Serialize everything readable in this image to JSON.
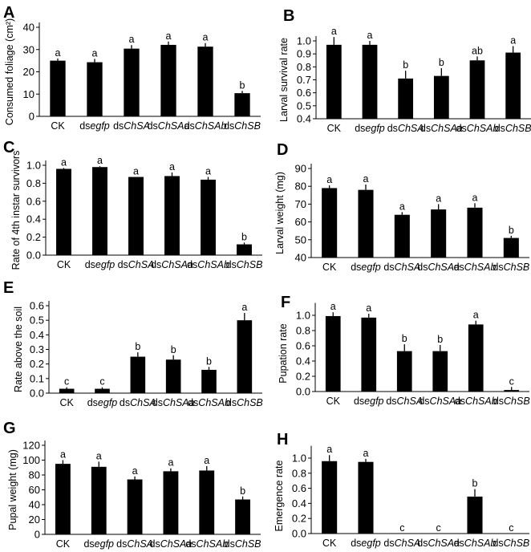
{
  "figure": {
    "categories": [
      {
        "prefix": "CK",
        "italic": ""
      },
      {
        "prefix": "ds",
        "italic": "egfp"
      },
      {
        "prefix": "ds",
        "italic": "ChSA"
      },
      {
        "prefix": "ds",
        "italic": "ChSAa"
      },
      {
        "prefix": "ds",
        "italic": "ChSAb"
      },
      {
        "prefix": "ds",
        "italic": "ChSB"
      }
    ],
    "bar_color": "#000000"
  },
  "chart_data": [
    {
      "panel": "A",
      "type": "bar",
      "title": "",
      "xlabel": "",
      "ylabel": "Consumed foliage (cm²)",
      "categories": [
        "CK",
        "dsegfp",
        "dsChSA",
        "dsChSAa",
        "dsChSAb",
        "dsChSB"
      ],
      "values": [
        25,
        24.3,
        30.4,
        32.1,
        31.3,
        10.4
      ],
      "errors": [
        1.0,
        1.5,
        1.6,
        1.5,
        1.6,
        1.0
      ],
      "significance": [
        "a",
        "a",
        "a",
        "a",
        "a",
        "b"
      ],
      "ylim": [
        0,
        40
      ],
      "yticks": [
        "0",
        "10",
        "20",
        "30",
        "40"
      ],
      "ytick_values": [
        0,
        10,
        20,
        30,
        40
      ],
      "grid": false
    },
    {
      "panel": "B",
      "type": "bar",
      "title": "",
      "xlabel": "",
      "ylabel": "Larval survival rate",
      "categories": [
        "CK",
        "dsegfp",
        "dsChSA",
        "dsChSAa",
        "dsChSAb",
        "dsChSB"
      ],
      "values": [
        0.97,
        0.97,
        0.71,
        0.73,
        0.85,
        0.91
      ],
      "errors": [
        0.06,
        0.03,
        0.06,
        0.06,
        0.03,
        0.05
      ],
      "significance": [
        "a",
        "a",
        "b",
        "b",
        "ab",
        "a"
      ],
      "ylim": [
        0.4,
        1.0
      ],
      "yticks": [
        "0.4",
        "0.5",
        "0.6",
        "0.7",
        "0.8",
        "0.9",
        "1.0"
      ],
      "ytick_values": [
        0.4,
        0.5,
        0.6,
        0.7,
        0.8,
        0.9,
        1.0
      ],
      "grid": false
    },
    {
      "panel": "C",
      "type": "bar",
      "title": "",
      "xlabel": "",
      "ylabel": "Rate of 4th instar survivors",
      "categories": [
        "CK",
        "dsegfp",
        "dsChSA",
        "dsChSAa",
        "dsChSAb",
        "dsChSB"
      ],
      "values": [
        0.96,
        0.98,
        0.87,
        0.88,
        0.84,
        0.12
      ],
      "errors": [
        0.01,
        0.01,
        0.0,
        0.04,
        0.03,
        0.02
      ],
      "significance": [
        "a",
        "a",
        "a",
        "a",
        "a",
        "b"
      ],
      "ylim": [
        0,
        1.0
      ],
      "yticks": [
        "0.0",
        "0.2",
        "0.4",
        "0.6",
        "0.8",
        "1.0"
      ],
      "ytick_values": [
        0,
        0.2,
        0.4,
        0.6,
        0.8,
        1.0
      ],
      "grid": false
    },
    {
      "panel": "D",
      "type": "bar",
      "title": "",
      "xlabel": "",
      "ylabel": "Larval  weight (mg)",
      "categories": [
        "CK",
        "dsegfp",
        "dsChSA",
        "dsChSAa",
        "dsChSAb",
        "dsChSB"
      ],
      "values": [
        79,
        78,
        64,
        67,
        68,
        51
      ],
      "errors": [
        1.5,
        3,
        1.5,
        3,
        2.5,
        1.2
      ],
      "significance": [
        "a",
        "a",
        "a",
        "a",
        "a",
        "b"
      ],
      "ylim": [
        40,
        90
      ],
      "yticks": [
        "40",
        "50",
        "60",
        "70",
        "80",
        "90"
      ],
      "ytick_values": [
        40,
        50,
        60,
        70,
        80,
        90
      ],
      "grid": false
    },
    {
      "panel": "E",
      "type": "bar",
      "title": "",
      "xlabel": "",
      "ylabel": "Rate above the soil",
      "categories": [
        "CK",
        "dsegfp",
        "dsChSA",
        "dsChSAa",
        "dsChSAb",
        "dsChSB"
      ],
      "values": [
        0.03,
        0.03,
        0.25,
        0.23,
        0.16,
        0.5
      ],
      "errors": [
        0.01,
        0.01,
        0.03,
        0.03,
        0.02,
        0.05
      ],
      "significance": [
        "c",
        "c",
        "b",
        "b",
        "b",
        "a"
      ],
      "ylim": [
        0,
        0.6
      ],
      "yticks": [
        "0.0",
        "0.1",
        "0.2",
        "0.3",
        "0.4",
        "0.5",
        "0.6"
      ],
      "ytick_values": [
        0,
        0.1,
        0.2,
        0.3,
        0.4,
        0.5,
        0.6
      ],
      "grid": false
    },
    {
      "panel": "F",
      "type": "bar",
      "title": "",
      "xlabel": "",
      "ylabel": "Pupation rate",
      "categories": [
        "CK",
        "dsegfp",
        "dsChSA",
        "dsChSAa",
        "dsChSAb",
        "dsChSB"
      ],
      "values": [
        0.99,
        0.97,
        0.53,
        0.53,
        0.88,
        0.02
      ],
      "errors": [
        0.05,
        0.05,
        0.09,
        0.08,
        0.05,
        0.04
      ],
      "significance": [
        "a",
        "a",
        "b",
        "b",
        "a",
        "c"
      ],
      "ylim": [
        0,
        1.1
      ],
      "yticks": [
        "0.0",
        "0.2",
        "0.4",
        "0.6",
        "0.8",
        "1.0"
      ],
      "ytick_values": [
        0,
        0.2,
        0.4,
        0.6,
        0.8,
        1.0
      ],
      "grid": false
    },
    {
      "panel": "G",
      "type": "bar",
      "title": "",
      "xlabel": "",
      "ylabel": "Pupal  weight (mg)",
      "categories": [
        "CK",
        "dsegfp",
        "dsChSA",
        "dsChSAa",
        "dsChSAb",
        "dsChSB"
      ],
      "values": [
        95,
        91,
        74,
        85,
        86,
        47
      ],
      "errors": [
        5,
        7,
        4,
        4,
        6,
        4
      ],
      "significance": [
        "a",
        "a",
        "a",
        "a",
        "a",
        "b"
      ],
      "ylim": [
        0,
        120
      ],
      "yticks": [
        "0",
        "20",
        "40",
        "60",
        "80",
        "100",
        "120"
      ],
      "ytick_values": [
        0,
        20,
        40,
        60,
        80,
        100,
        120
      ],
      "grid": false
    },
    {
      "panel": "H",
      "type": "bar",
      "title": "",
      "xlabel": "",
      "ylabel": "Emergence rate",
      "categories": [
        "CK",
        "dsegfp",
        "dsChSA",
        "dsChSAa",
        "dsChSAb",
        "dsChSB"
      ],
      "values": [
        0.96,
        0.95,
        0,
        0,
        0.49,
        0
      ],
      "errors": [
        0.08,
        0.04,
        0,
        0,
        0.1,
        0
      ],
      "significance": [
        "a",
        "a",
        "c",
        "c",
        "b",
        "c"
      ],
      "ylim": [
        0,
        1.1
      ],
      "yticks": [
        "0.0",
        "0.2",
        "0.4",
        "0.6",
        "0.8",
        "1.0"
      ],
      "ytick_values": [
        0,
        0.2,
        0.4,
        0.6,
        0.8,
        1.0
      ],
      "grid": false
    }
  ]
}
